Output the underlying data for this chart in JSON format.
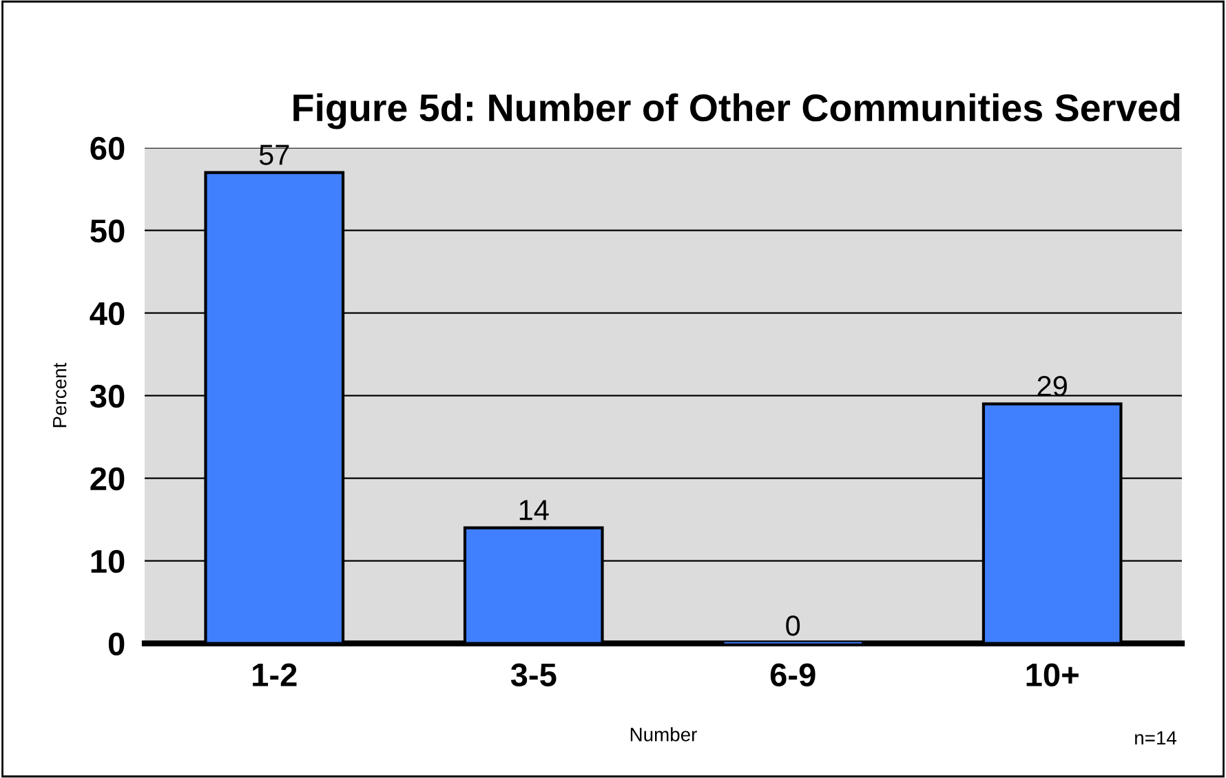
{
  "chart_data": {
    "type": "bar",
    "title": "Figure 5d: Number of Other Communities Served",
    "xlabel": "Number",
    "ylabel": "Percent",
    "categories": [
      "1-2",
      "3-5",
      "6-9",
      "10+"
    ],
    "values": [
      57,
      14,
      0,
      29
    ],
    "color": "#4080ff",
    "ylim": [
      0,
      60
    ],
    "yticks": [
      0,
      10,
      20,
      30,
      40,
      50,
      60
    ],
    "grid": "y",
    "data_labels": true,
    "annotations": [
      "n=14"
    ]
  }
}
